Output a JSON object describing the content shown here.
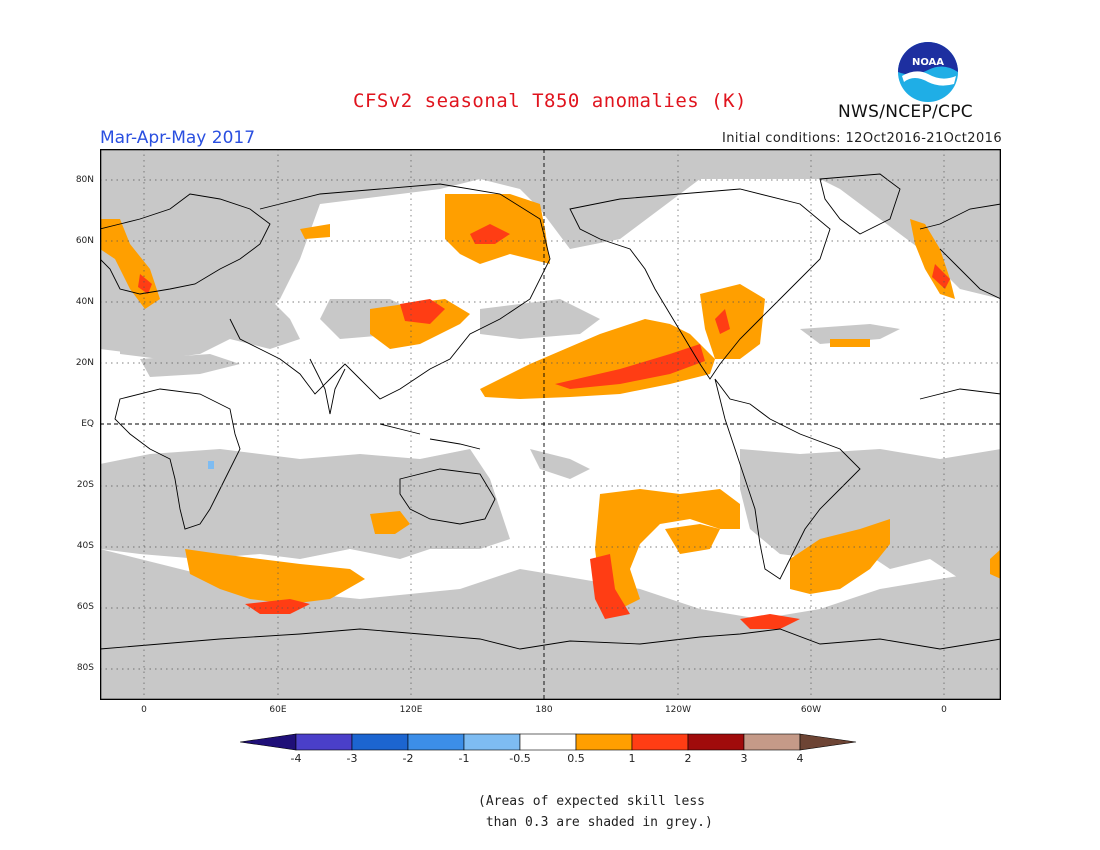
{
  "title": "CFSv2 seasonal T850 anomalies (K)",
  "agency": "NWS/NCEP/CPC",
  "logo": {
    "name": "noaa-logo",
    "text": "NOAA"
  },
  "season": "Mar-Apr-May 2017",
  "initial_conditions": "Initial conditions: 12Oct2016-21Oct2016",
  "lat_labels": [
    "80N",
    "60N",
    "40N",
    "20N",
    "EQ",
    "20S",
    "40S",
    "60S",
    "80S"
  ],
  "lon_labels": [
    "0",
    "60E",
    "120E",
    "180",
    "120W",
    "60W",
    "0"
  ],
  "colorbar": {
    "labels": [
      "-4",
      "-3",
      "-2",
      "-1",
      "-0.5",
      "0.5",
      "1",
      "2",
      "3",
      "4"
    ],
    "colors": [
      "#1f0f78",
      "#4a3fc9",
      "#1c65d0",
      "#3c8ee8",
      "#7ebcf2",
      "#ffffff",
      "#ff9f00",
      "#ff3d14",
      "#a00b0b",
      "#c59a88",
      "#6d4434"
    ]
  },
  "skill_shading_color": "#c8c8c8",
  "note": "(Areas of expected skill less\n than 0.3 are shaded in grey.)"
}
